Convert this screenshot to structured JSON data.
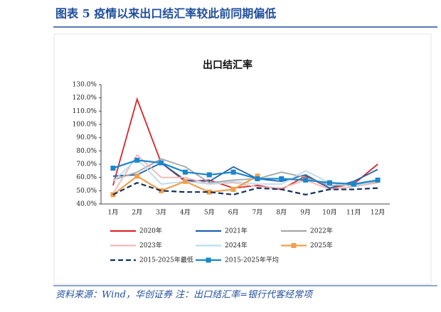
{
  "header": {
    "title": "图表 5   疫情以来出口结汇率较此前同期偏低"
  },
  "chart_data": {
    "type": "line",
    "title": "出口结汇率",
    "categories": [
      "1月",
      "2月",
      "3月",
      "4月",
      "5月",
      "6月",
      "7月",
      "8月",
      "9月",
      "10月",
      "11月",
      "12月"
    ],
    "ylim": [
      40,
      130
    ],
    "yticks": [
      {
        "value": 40,
        "label": "40.0%"
      },
      {
        "value": 50,
        "label": "50.0%"
      },
      {
        "value": 60,
        "label": "60.0%"
      },
      {
        "value": 70,
        "label": "70.0%"
      },
      {
        "value": 80,
        "label": "80.0%"
      },
      {
        "value": 90,
        "label": "90.0%"
      },
      {
        "value": 100,
        "label": "100.0%"
      },
      {
        "value": 110,
        "label": "110.0%"
      },
      {
        "value": 120,
        "label": "120.0%"
      },
      {
        "value": 130,
        "label": "130.0%"
      }
    ],
    "series": [
      {
        "name": "2020年",
        "color": "#d7262b",
        "values": [
          54,
          119,
          71,
          57,
          58,
          52,
          54,
          51,
          61,
          52,
          55,
          70
        ]
      },
      {
        "name": "2021年",
        "color": "#1f5fae",
        "values": [
          61,
          62,
          71,
          58,
          57,
          68,
          59,
          57,
          62,
          52,
          57,
          66
        ]
      },
      {
        "name": "2022年",
        "color": "#a6a6a6",
        "values": [
          58,
          64,
          74,
          68,
          56,
          58,
          59,
          64,
          60,
          54,
          54,
          57
        ]
      },
      {
        "name": "2023年",
        "color": "#f2b8b6",
        "values": [
          48,
          77,
          60,
          60,
          55,
          56,
          53,
          52,
          58,
          51,
          53,
          56
        ]
      },
      {
        "name": "2024年",
        "color": "#b7dcef",
        "values": [
          57,
          74,
          55,
          57,
          55,
          57,
          55,
          55,
          65,
          56,
          53,
          58
        ]
      },
      {
        "name": "2025年",
        "color": "#f0a04b",
        "marker": "square",
        "values": [
          47,
          61,
          50,
          57,
          49,
          51,
          61,
          null,
          null,
          null,
          null,
          null
        ]
      },
      {
        "name": "2015-2025年最低",
        "color": "#14305e",
        "dash": true,
        "values": [
          47,
          56,
          50,
          49,
          49,
          47,
          52,
          51,
          47,
          51,
          51,
          52
        ]
      },
      {
        "name": "2015-2025年平均",
        "color": "#1a86cc",
        "marker": "square",
        "values": [
          67,
          73,
          71,
          64,
          62,
          64,
          59,
          59,
          58,
          56,
          55,
          58
        ]
      }
    ]
  },
  "footer": {
    "source": "资料来源：Wind，华创证券    注：出口结汇率=银行代客经常项"
  }
}
